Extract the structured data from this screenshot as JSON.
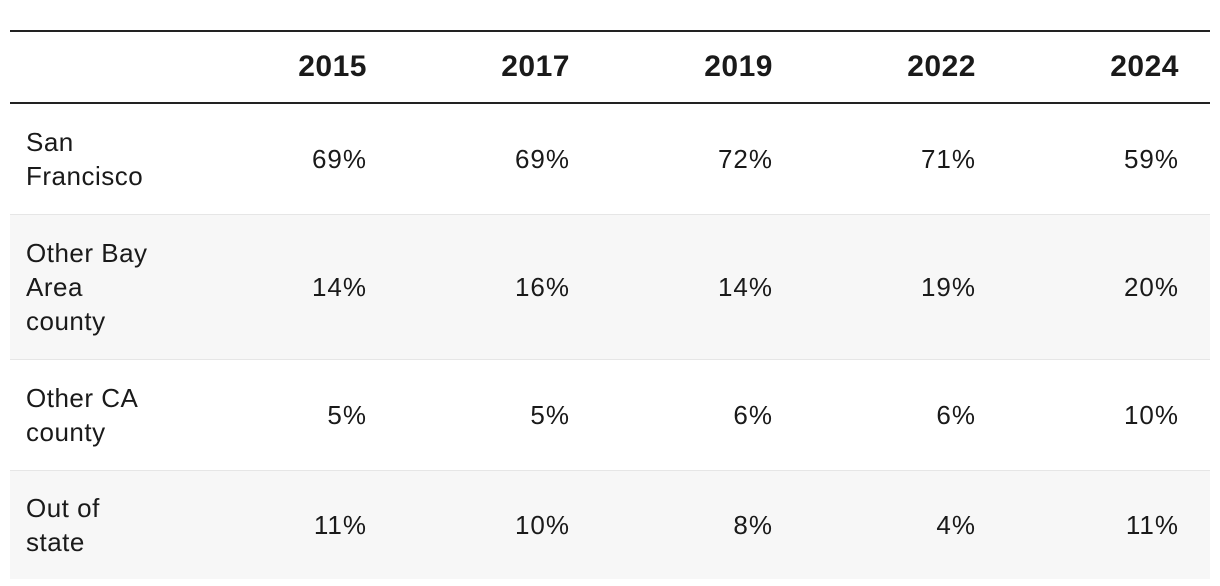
{
  "chart_data": {
    "type": "table",
    "columns": [
      "2015",
      "2017",
      "2019",
      "2022",
      "2024"
    ],
    "rows": [
      {
        "label_lines": [
          "San",
          "Francisco"
        ],
        "values": [
          "69%",
          "69%",
          "72%",
          "71%",
          "59%"
        ]
      },
      {
        "label_lines": [
          "Other Bay",
          "Area",
          "county"
        ],
        "values": [
          "14%",
          "16%",
          "14%",
          "19%",
          "20%"
        ]
      },
      {
        "label_lines": [
          "Other CA",
          "county"
        ],
        "values": [
          "5%",
          "5%",
          "6%",
          "6%",
          "10%"
        ]
      },
      {
        "label_lines": [
          "Out of",
          "state"
        ],
        "values": [
          "11%",
          "10%",
          "8%",
          "4%",
          "11%"
        ]
      }
    ],
    "series": [
      {
        "name": "San Francisco",
        "values": [
          69,
          69,
          72,
          71,
          59
        ]
      },
      {
        "name": "Other Bay Area county",
        "values": [
          14,
          16,
          14,
          19,
          20
        ]
      },
      {
        "name": "Other CA county",
        "values": [
          5,
          5,
          6,
          6,
          10
        ]
      },
      {
        "name": "Out of state",
        "values": [
          11,
          10,
          8,
          4,
          11
        ]
      }
    ],
    "unit": "%"
  },
  "colors": {
    "rule": "#222222",
    "stripe": "#f7f7f7",
    "text": "#1a1a1a",
    "divider": "#e6e6e6"
  }
}
